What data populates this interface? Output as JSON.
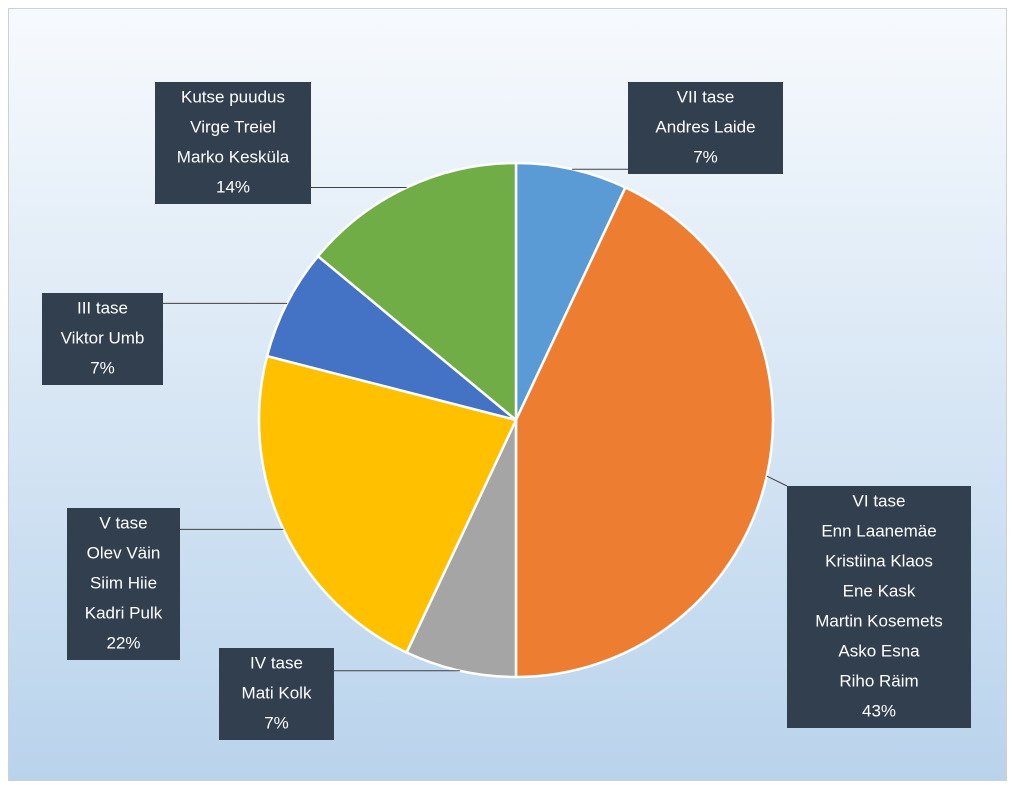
{
  "chart_data": {
    "type": "pie",
    "categories": [
      "VII tase",
      "VI tase",
      "IV tase",
      "V tase",
      "III tase",
      "Kutse puudus"
    ],
    "people": [
      [
        "Andres Laide"
      ],
      [
        "Enn Laanemäe",
        "Kristiina Klaos",
        "Ene Kask",
        "Martin Kosemets",
        "Asko Esna",
        "Riho Räim"
      ],
      [
        "Mati Kolk"
      ],
      [
        "Olev Väin",
        "Siim Hiie",
        "Kadri Pulk"
      ],
      [
        "Viktor Umb"
      ],
      [
        "Virge Treiel",
        "Marko Kesküla"
      ]
    ],
    "values": [
      7,
      43,
      7,
      22,
      7,
      14
    ],
    "value_labels": [
      "7%",
      "43%",
      "7%",
      "22%",
      "7%",
      "14%"
    ],
    "colors": [
      "#5b9bd5",
      "#ed7d31",
      "#a5a5a5",
      "#ffc000",
      "#4472c4",
      "#70ad47"
    ]
  }
}
